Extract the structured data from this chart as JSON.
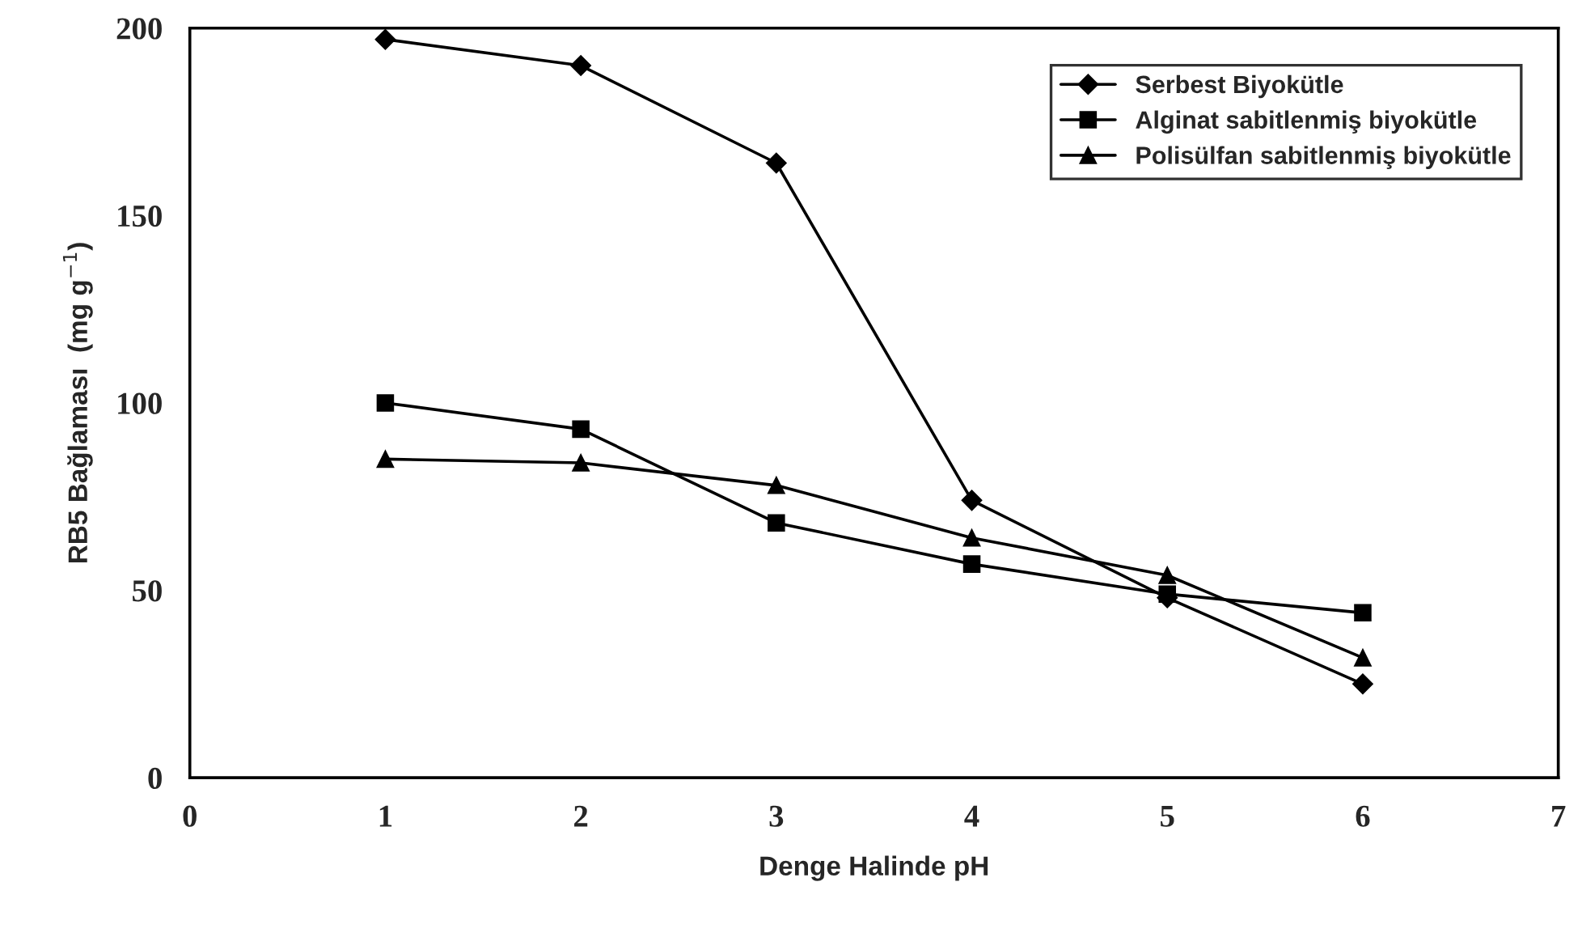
{
  "chart_data": {
    "type": "line",
    "xlabel": "Denge Halinde pH",
    "ylabel": "RB5 Bağlaması  (mg g$^{−1}$)",
    "x": [
      1,
      2,
      3,
      4,
      5,
      6
    ],
    "series": [
      {
        "name": "Serbest Biyokütle",
        "color": "#000000",
        "marker": "diamond",
        "values": [
          197,
          190,
          164,
          74,
          48,
          25
        ]
      },
      {
        "name": "Alginat sabitlenmiş biyokütle",
        "color": "#000000",
        "marker": "square",
        "values": [
          100,
          93,
          68,
          57,
          49,
          44
        ]
      },
      {
        "name": "Polisülfan sabitlenmiş biyokütle",
        "color": "#000000",
        "marker": "triangle",
        "values": [
          85,
          84,
          78,
          64,
          54,
          32
        ]
      }
    ],
    "xlim": [
      0,
      7
    ],
    "xticks": [
      0,
      1,
      2,
      3,
      4,
      5,
      6,
      7
    ],
    "ylim": [
      0,
      200
    ],
    "yticks": [
      0,
      50,
      100,
      150,
      200
    ],
    "grid": false,
    "legend": "top right",
    "line_style": "solid"
  }
}
